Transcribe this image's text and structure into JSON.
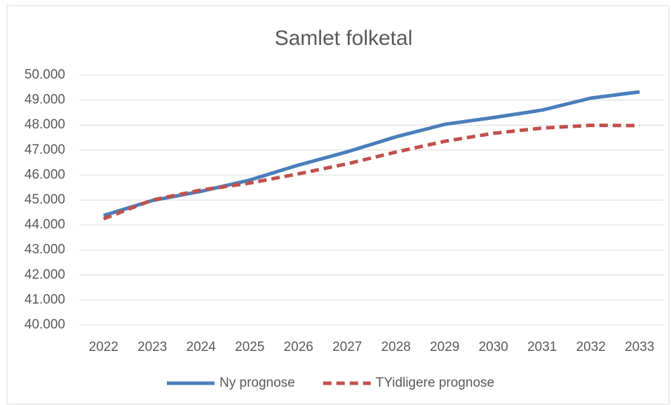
{
  "chart_data": {
    "type": "line",
    "title": "Samlet folketal",
    "categories": [
      "2022",
      "2023",
      "2024",
      "2025",
      "2026",
      "2027",
      "2028",
      "2029",
      "2030",
      "2031",
      "2032",
      "2033"
    ],
    "series": [
      {
        "name": "Ny prognose",
        "color": "#4a7ebb",
        "dash": false,
        "values": [
          44380,
          44980,
          45350,
          45800,
          46400,
          46930,
          47530,
          48030,
          48300,
          48600,
          49080,
          49330
        ]
      },
      {
        "name": "TYidligere prognose",
        "color": "#c0504d",
        "dash": true,
        "values": [
          44250,
          45000,
          45400,
          45680,
          46050,
          46450,
          46920,
          47350,
          47670,
          47880,
          47990,
          47980
        ]
      }
    ],
    "ylim": [
      40000,
      50000
    ],
    "yticks": [
      {
        "value": 40000,
        "label": "40.000"
      },
      {
        "value": 41000,
        "label": "41.000"
      },
      {
        "value": 42000,
        "label": "42.000"
      },
      {
        "value": 43000,
        "label": "43.000"
      },
      {
        "value": 44000,
        "label": "44.000"
      },
      {
        "value": 45000,
        "label": "45.000"
      },
      {
        "value": 46000,
        "label": "46.000"
      },
      {
        "value": 47000,
        "label": "47.000"
      },
      {
        "value": 48000,
        "label": "48.000"
      },
      {
        "value": 49000,
        "label": "49.000"
      },
      {
        "value": 50000,
        "label": "50.000"
      }
    ],
    "grid": true,
    "legend": "bottom"
  }
}
